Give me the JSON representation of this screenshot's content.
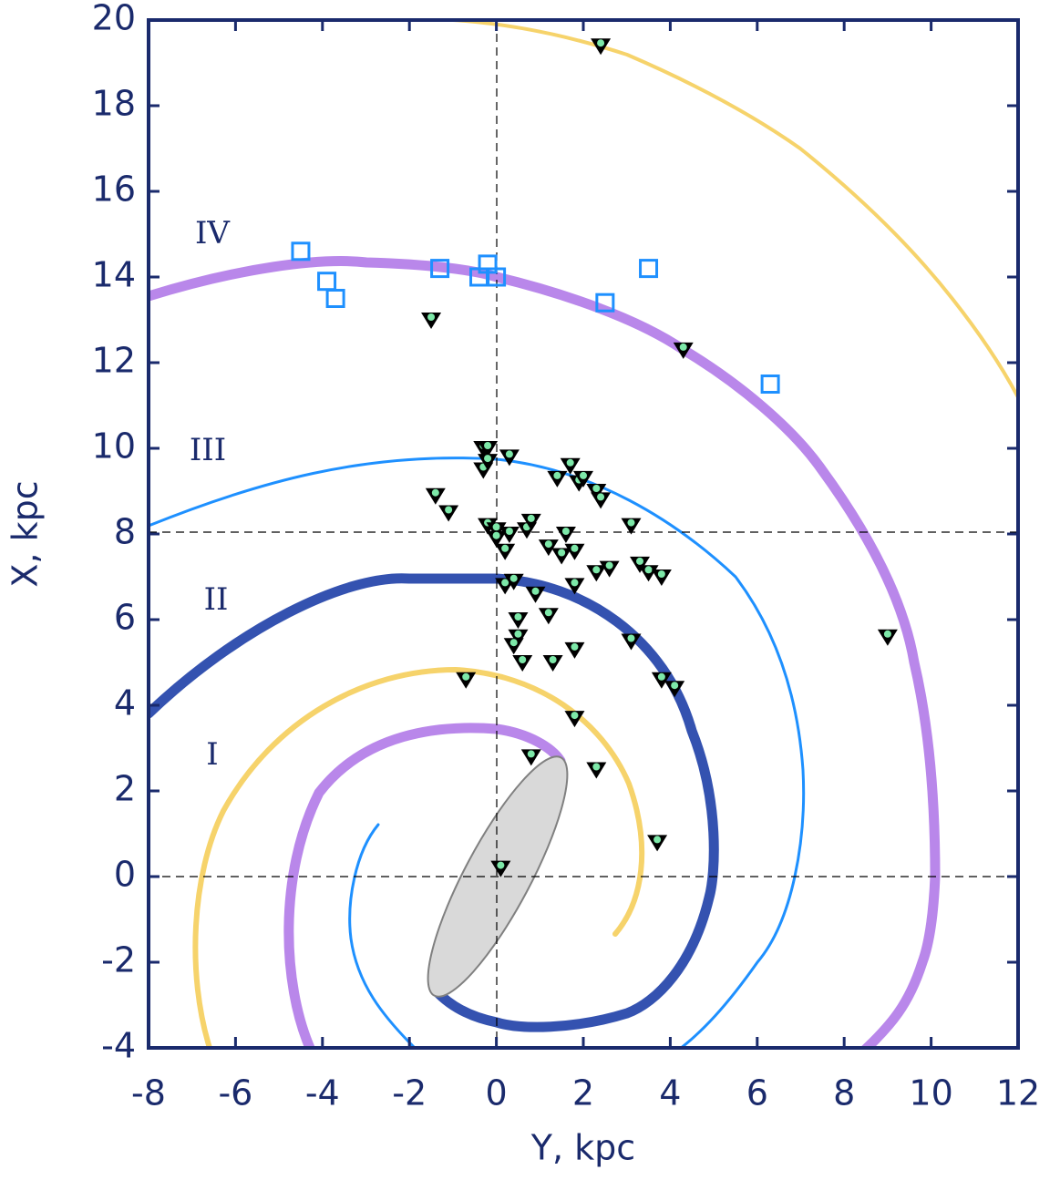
{
  "chart_data": {
    "type": "scatter",
    "xlabel": "Y, kpc",
    "ylabel": "X, kpc",
    "annotations": [
      "I",
      "II",
      "III",
      "IV"
    ],
    "xlim": [
      -8,
      12
    ],
    "ylim": [
      -4,
      20
    ],
    "xticks": [
      -8,
      -6,
      -4,
      -2,
      0,
      2,
      4,
      6,
      8,
      10,
      12
    ],
    "yticks": [
      -4,
      -2,
      0,
      2,
      4,
      6,
      8,
      10,
      12,
      14,
      16,
      18,
      20
    ],
    "series": [
      {
        "marker": "triangle",
        "color": "#000000",
        "x": [
          2.4,
          -1.5,
          4.3,
          -0.3,
          -0.2,
          0.3,
          -0.3,
          -0.2,
          1.7,
          1.4,
          1.9,
          2.0,
          2.3,
          2.4,
          -1.4,
          -1.1,
          -0.2,
          0,
          0.3,
          0.7,
          0.8,
          1.6,
          1.2,
          1.5,
          1.8,
          0,
          0.2,
          3.1,
          2.3,
          2.6,
          3.3,
          3.5,
          3.8,
          1.8,
          0.2,
          0.4,
          0.9,
          0.5,
          1.2,
          0.5,
          0.4,
          0.6,
          1.3,
          1.8,
          3.1,
          -0.7,
          3.8,
          4.1,
          1.8,
          0.8,
          2.3,
          3.7,
          0.1,
          9.0
        ],
        "values": [
          19.4,
          13.0,
          12.3,
          10.0,
          10.0,
          9.8,
          9.5,
          9.7,
          9.6,
          9.3,
          9.2,
          9.3,
          9.0,
          8.8,
          8.9,
          8.5,
          8.2,
          8.1,
          8.0,
          8.1,
          8.3,
          8.0,
          7.7,
          7.5,
          7.6,
          7.9,
          7.6,
          8.2,
          7.1,
          7.2,
          7.3,
          7.1,
          7.0,
          6.8,
          6.8,
          6.9,
          6.6,
          6.0,
          6.1,
          5.6,
          5.4,
          5.0,
          5.0,
          5.3,
          5.5,
          4.6,
          4.6,
          4.4,
          3.7,
          2.8,
          2.5,
          0.8,
          0.2,
          5.6
        ]
      },
      {
        "marker": "square",
        "color": "#1e90ff",
        "x": [
          -4.5,
          -3.9,
          -3.7,
          -1.3,
          -0.4,
          -0.2,
          0,
          2.5,
          3.5,
          6.3
        ],
        "values": [
          14.6,
          13.9,
          13.5,
          14.2,
          14.0,
          14.3,
          14.0,
          13.4,
          14.2,
          11.5
        ]
      }
    ]
  }
}
